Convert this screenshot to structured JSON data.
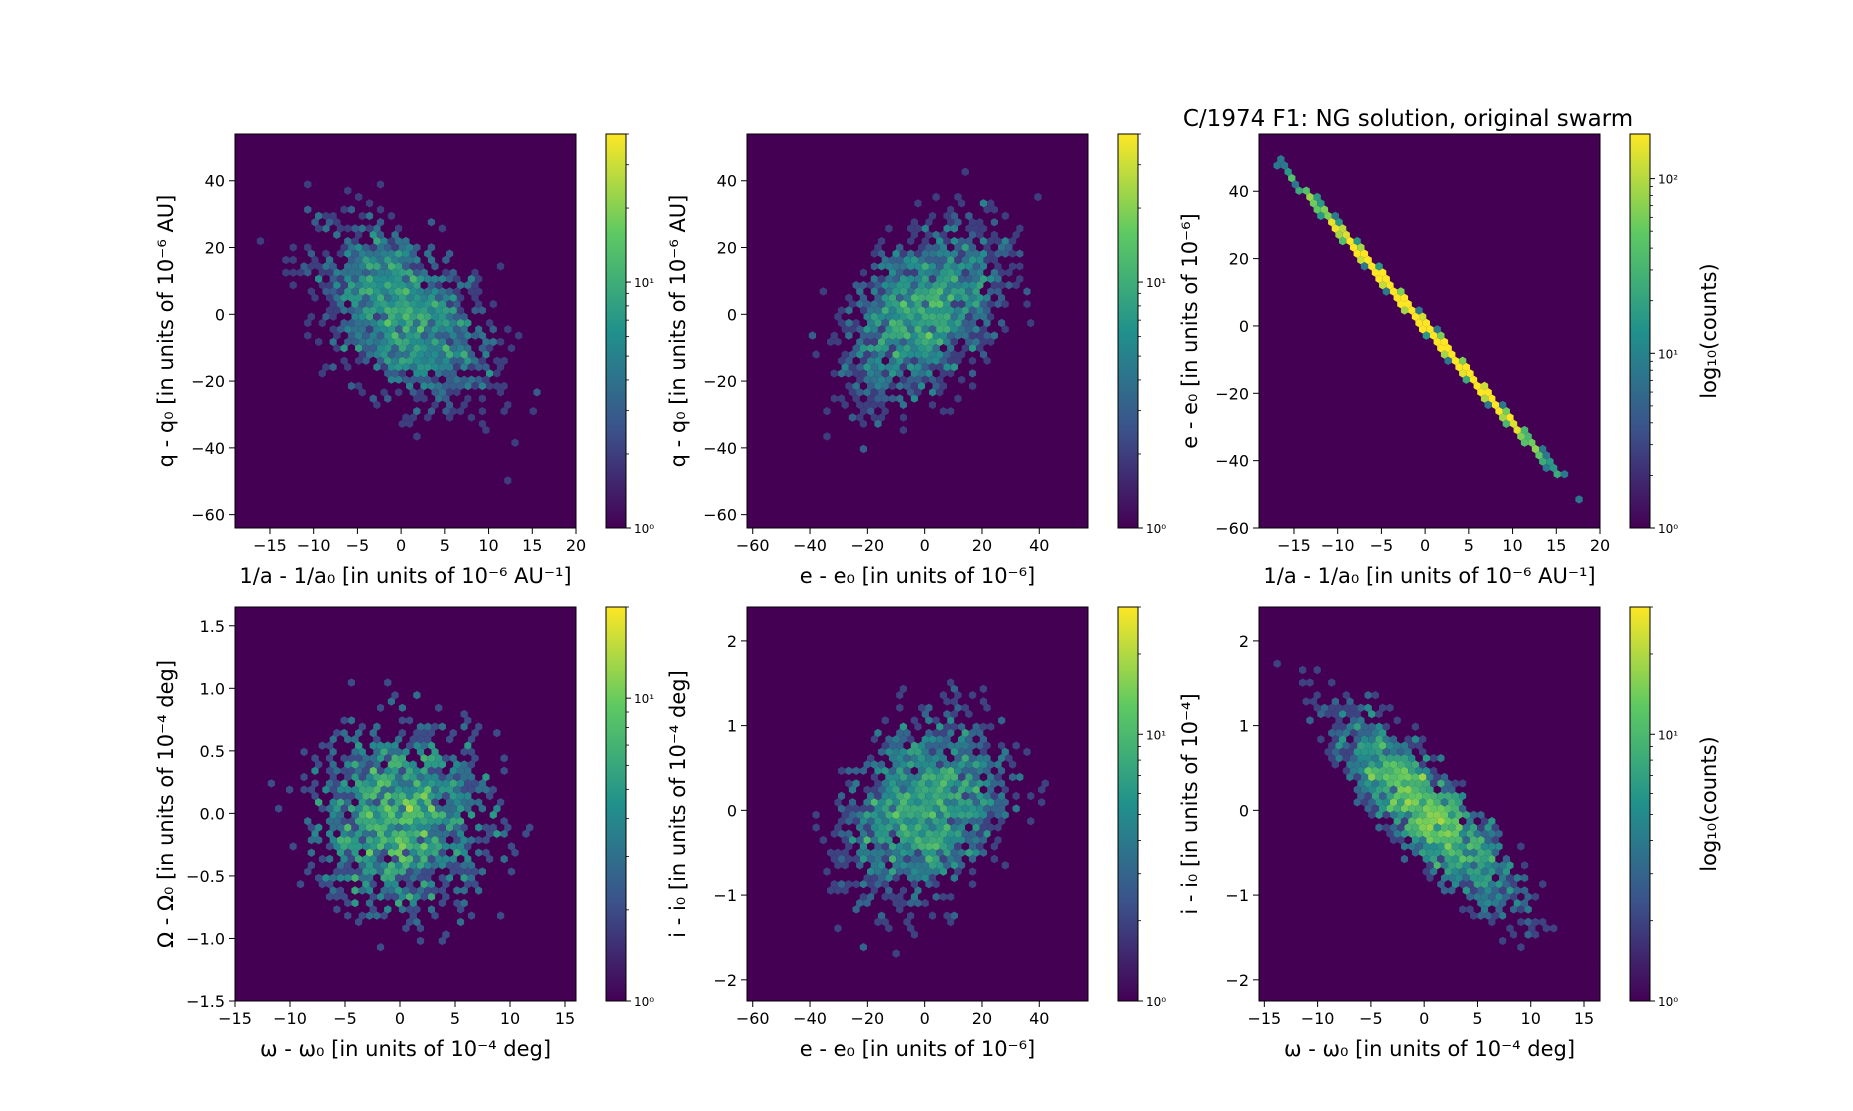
{
  "figure_title": "C/1974 F1:  NG solution, original swarm",
  "colormap": [
    "#440154",
    "#3b528b",
    "#21918c",
    "#5ec962",
    "#fde725"
  ],
  "chart_data": [
    {
      "type": "heatmap",
      "subtype": "hexbin",
      "xlabel": "1/a - 1/a₀ [in units of 10⁻⁶ AU⁻¹]",
      "ylabel": "q - q₀ [in units of 10⁻⁶ AU]",
      "xlim": [
        -19,
        20
      ],
      "ylim": [
        -64,
        54
      ],
      "xticks": [
        -15,
        -10,
        -5,
        0,
        5,
        10,
        15,
        20
      ],
      "yticks": [
        -60,
        -40,
        -20,
        0,
        20,
        40
      ],
      "distribution": {
        "mean": [
          0,
          0
        ],
        "sd": [
          5.5,
          15
        ],
        "correlation": -0.45
      },
      "colorbar": {
        "scale": "log",
        "range": [
          1,
          40
        ],
        "ticks": [
          "10⁰",
          "10¹"
        ],
        "label": ""
      }
    },
    {
      "type": "heatmap",
      "subtype": "hexbin",
      "xlabel": "e - e₀ [in units of 10⁻⁶]",
      "ylabel": "q - q₀ [in units of 10⁻⁶ AU]",
      "xlim": [
        -62,
        57
      ],
      "ylim": [
        -64,
        54
      ],
      "xticks": [
        -60,
        -40,
        -20,
        0,
        20,
        40
      ],
      "yticks": [
        -60,
        -40,
        -20,
        0,
        20,
        40
      ],
      "distribution": {
        "mean": [
          0,
          0
        ],
        "sd": [
          16,
          15
        ],
        "correlation": 0.45
      },
      "colorbar": {
        "scale": "log",
        "range": [
          1,
          40
        ],
        "ticks": [
          "10⁰",
          "10¹"
        ],
        "label": ""
      }
    },
    {
      "type": "heatmap",
      "subtype": "hexbin",
      "xlabel": "1/a - 1/a₀ [in units of 10⁻⁶ AU⁻¹]",
      "ylabel": "e - e₀ [in units of 10⁻⁶]",
      "xlim": [
        -19,
        20
      ],
      "ylim": [
        -60,
        57
      ],
      "xticks": [
        -15,
        -10,
        -5,
        0,
        5,
        10,
        15,
        20
      ],
      "yticks": [
        -60,
        -40,
        -20,
        0,
        20,
        40
      ],
      "distribution": {
        "mean": [
          0,
          0
        ],
        "sd": [
          5.5,
          16
        ],
        "correlation": -1.0,
        "slope": -2.9
      },
      "colorbar": {
        "scale": "log",
        "range": [
          1,
          180
        ],
        "ticks": [
          "10⁰",
          "10¹",
          "10²"
        ],
        "label": "log₁₀(counts)"
      }
    },
    {
      "type": "heatmap",
      "subtype": "hexbin",
      "xlabel": "ω - ω₀ [in units of 10⁻⁴ deg]",
      "ylabel": "Ω - Ω₀ [in units of 10⁻⁴ deg]",
      "xlim": [
        -15,
        16
      ],
      "ylim": [
        -1.5,
        1.65
      ],
      "xticks": [
        -15,
        -10,
        -5,
        0,
        5,
        10,
        15
      ],
      "yticks": [
        -1.5,
        -1.0,
        -0.5,
        0.0,
        0.5,
        1.0,
        1.5
      ],
      "distribution": {
        "mean": [
          0,
          -0.05
        ],
        "sd": [
          4.6,
          0.42
        ],
        "correlation": 0.0
      },
      "colorbar": {
        "scale": "log",
        "range": [
          1,
          20
        ],
        "ticks": [
          "10⁰",
          "10¹"
        ],
        "label": ""
      }
    },
    {
      "type": "heatmap",
      "subtype": "hexbin",
      "xlabel": "e - e₀ [in units of 10⁻⁶]",
      "ylabel": "i - i₀ [in units of 10⁻⁴ deg]",
      "xlim": [
        -62,
        57
      ],
      "ylim": [
        -2.25,
        2.4
      ],
      "xticks": [
        -60,
        -40,
        -20,
        0,
        20,
        40
      ],
      "yticks": [
        -2,
        -1,
        0,
        1,
        2
      ],
      "distribution": {
        "mean": [
          0,
          0
        ],
        "sd": [
          16,
          0.62
        ],
        "correlation": 0.3
      },
      "colorbar": {
        "scale": "log",
        "range": [
          1,
          30
        ],
        "ticks": [
          "10⁰",
          "10¹"
        ],
        "label": ""
      }
    },
    {
      "type": "heatmap",
      "subtype": "hexbin",
      "xlabel": "ω - ω₀ [in units of 10⁻⁴ deg]",
      "ylabel": "i - i₀ [in units of 10⁻⁴]",
      "xlim": [
        -15.5,
        16.5
      ],
      "ylim": [
        -2.25,
        2.4
      ],
      "xticks": [
        -15,
        -10,
        -5,
        0,
        5,
        10,
        15
      ],
      "yticks": [
        -2,
        -1,
        0,
        1,
        2
      ],
      "distribution": {
        "mean": [
          0,
          0
        ],
        "sd": [
          4.6,
          0.62
        ],
        "correlation": -0.85
      },
      "colorbar": {
        "scale": "log",
        "range": [
          1,
          30
        ],
        "ticks": [
          "10⁰",
          "10¹"
        ],
        "label": "log₁₀(counts)"
      }
    }
  ]
}
